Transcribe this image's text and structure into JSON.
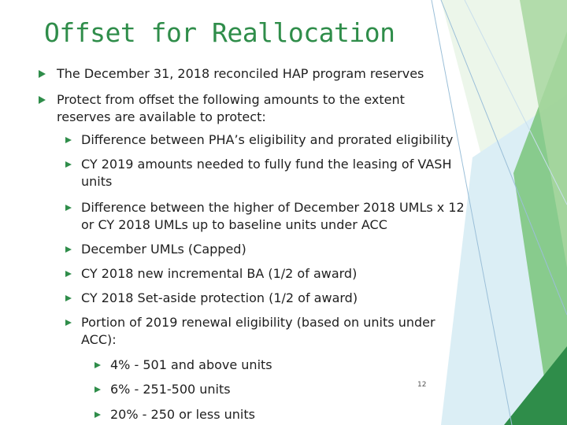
{
  "slide": {
    "title": "Offset for Reallocation",
    "bullets_l1": [
      "The December 31, 2018 reconciled HAP program reserves",
      "Protect from offset the following amounts to the extent reserves are available to protect:"
    ],
    "bullets_l2": [
      "Difference between PHA’s eligibility and prorated eligibility",
      "CY 2019 amounts needed to fully fund the leasing of VASH units",
      "Difference between the higher of December 2018 UMLs x 12 or CY 2018 UMLs up to baseline units under ACC",
      "December UMLs (Capped)",
      "CY 2018 new incremental BA (1/2 of award)",
      "CY 2018 Set-aside protection (1/2 of award)",
      "Portion of 2019 renewal eligibility (based on units under ACC):"
    ],
    "bullets_l3": [
      "4% - 501 and above units",
      "6% - 251-500 units",
      "20% - 250 or less units"
    ],
    "page_number": "12"
  },
  "colors": {
    "title": "#2f8d4a",
    "bullet": "#2f8d4a",
    "deco_light": "#a8d7a0",
    "deco_mid": "#6cbf6a",
    "deco_blue": "#b9d7ea"
  }
}
